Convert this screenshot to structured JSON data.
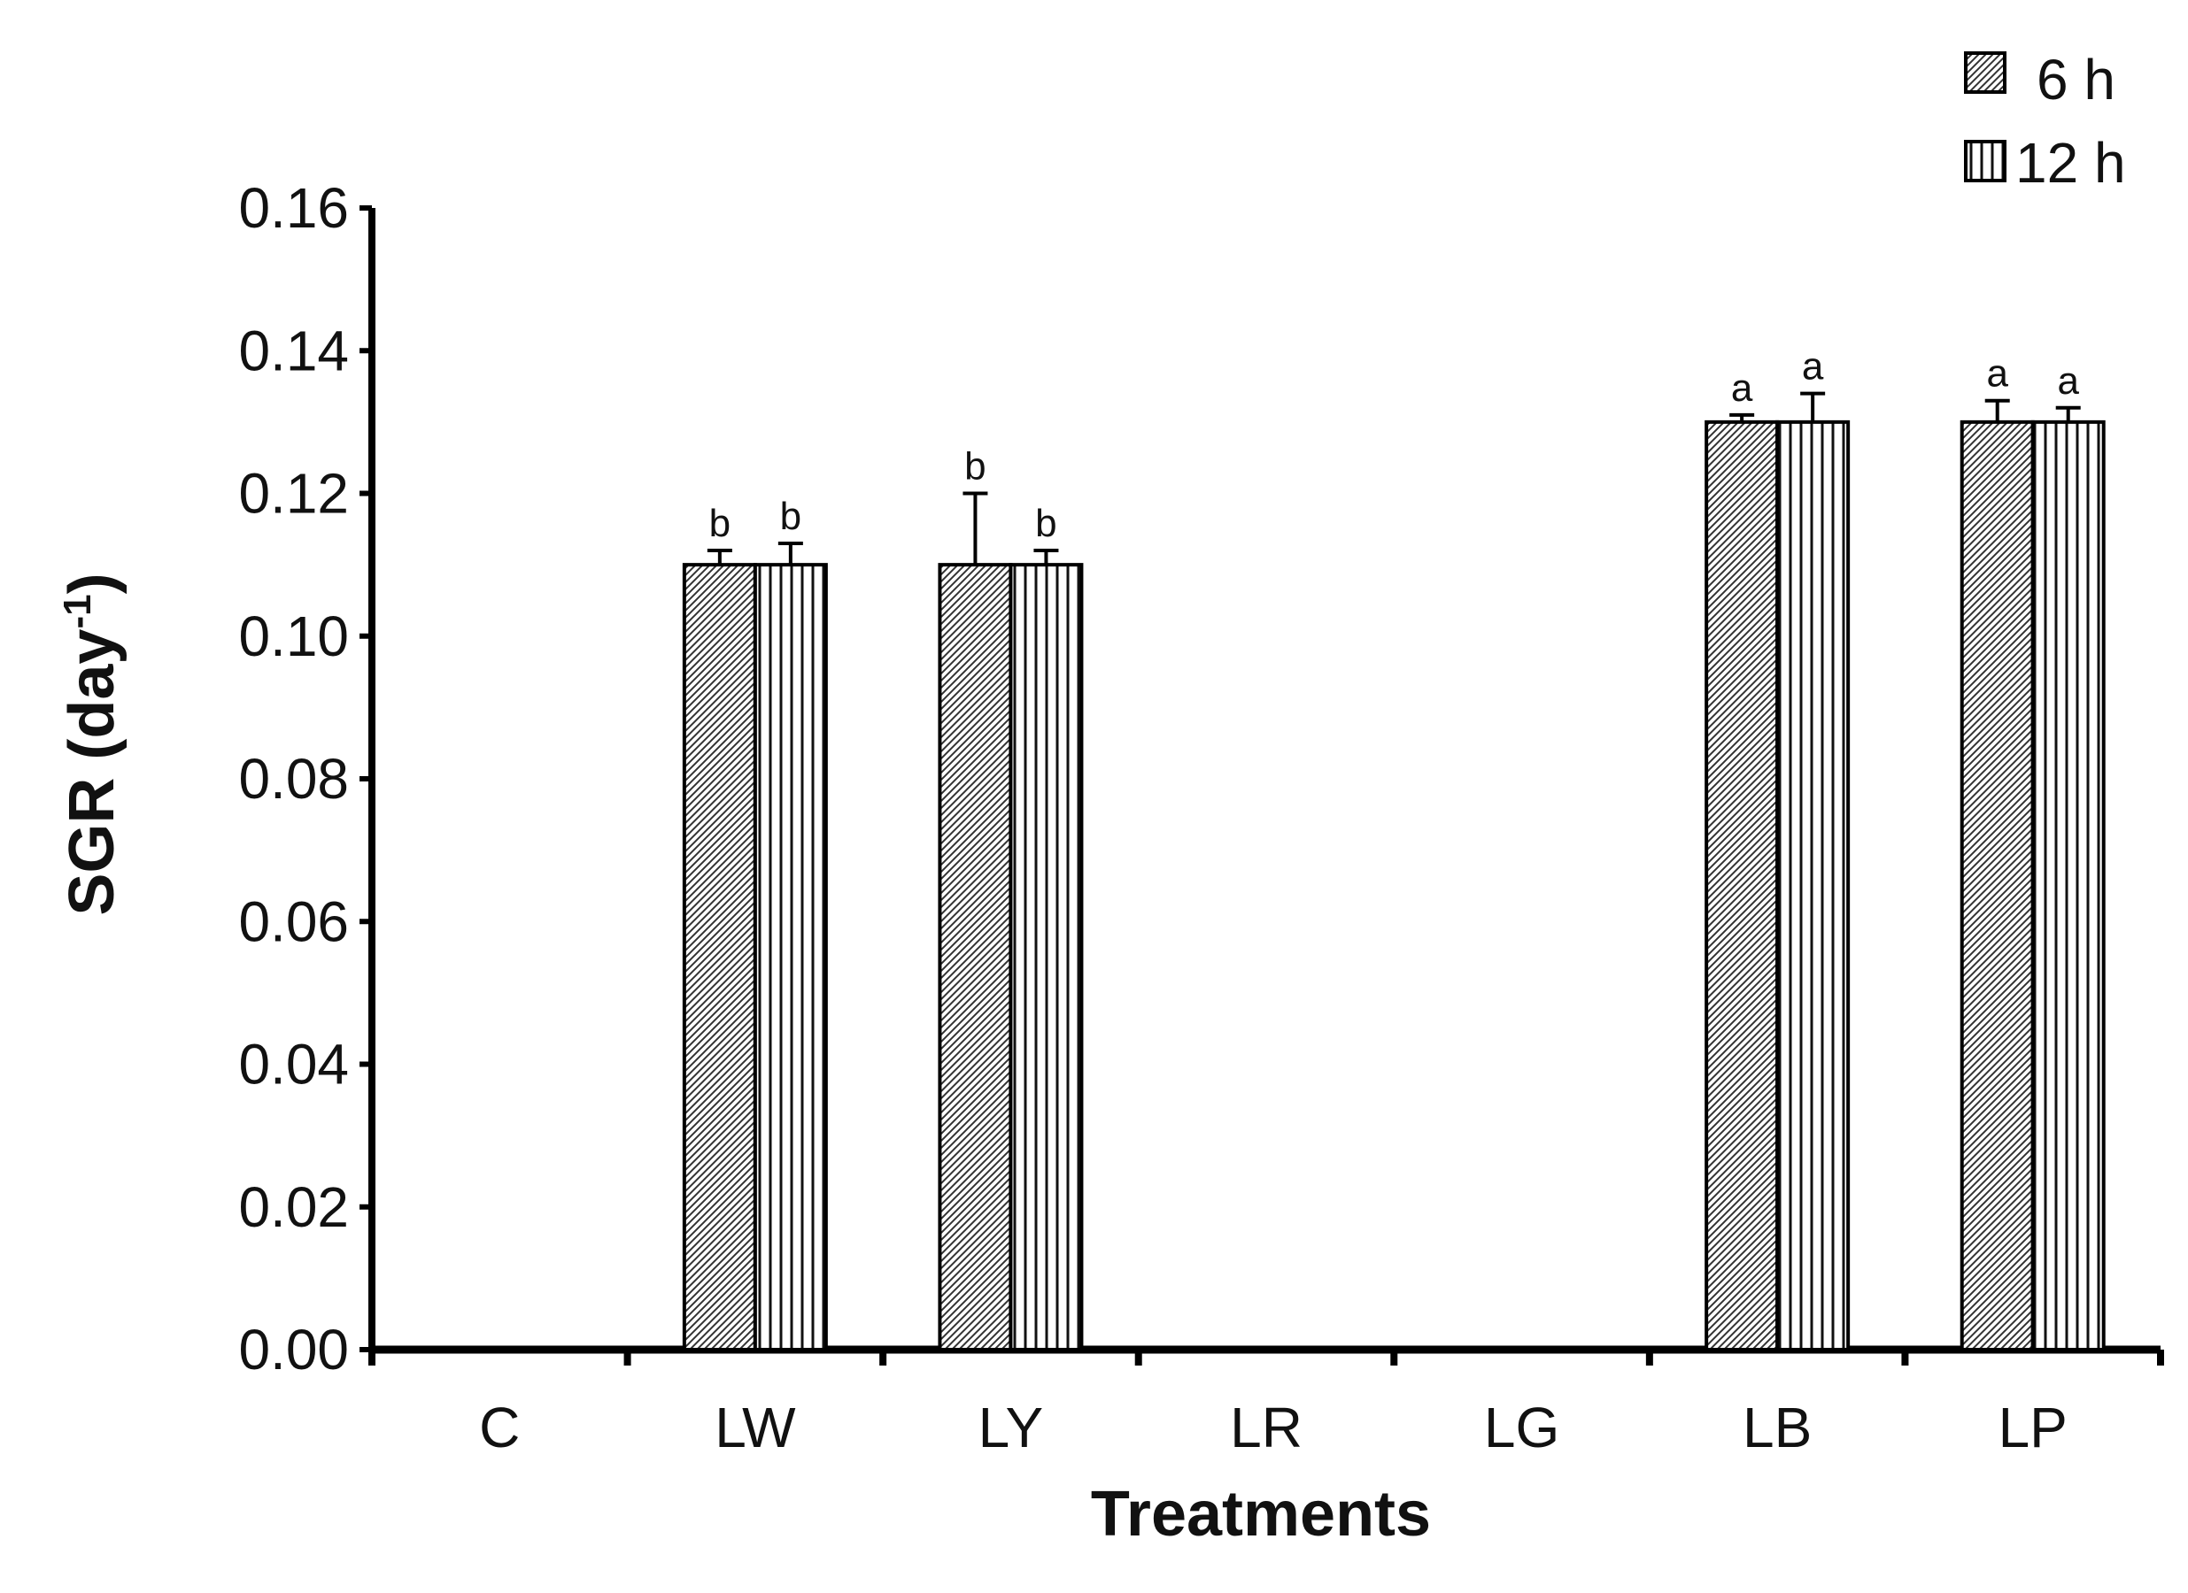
{
  "chart_data": {
    "type": "bar",
    "title": "",
    "xlabel": "Treatments",
    "ylabel": "SGR (day",
    "ylabel_superscript": "-1",
    "ylabel_close": ")",
    "ylim": [
      0,
      0.16
    ],
    "yticks": [
      "0.00",
      "0.02",
      "0.04",
      "0.06",
      "0.08",
      "0.10",
      "0.12",
      "0.14",
      "0.16"
    ],
    "categories": [
      "C",
      "LW",
      "LY",
      "LR",
      "LG",
      "LB",
      "LP"
    ],
    "legend_position": "top-right",
    "series": [
      {
        "name": "6 h",
        "pattern": "diagonal-hatch",
        "values": [
          0,
          0.11,
          0.11,
          0,
          0,
          0.13,
          0.13
        ],
        "errors": [
          0,
          0.002,
          0.01,
          0,
          0,
          0.001,
          0.003
        ],
        "labels": [
          "",
          "b",
          "b",
          "",
          "",
          "a",
          "a"
        ]
      },
      {
        "name": "12 h",
        "pattern": "vertical-lines",
        "values": [
          0,
          0.11,
          0.11,
          0,
          0,
          0.13,
          0.13
        ],
        "errors": [
          0,
          0.003,
          0.002,
          0,
          0,
          0.004,
          0.002
        ],
        "labels": [
          "",
          "b",
          "b",
          "",
          "",
          "a",
          "a"
        ]
      }
    ],
    "colors": {
      "axis": "#000000",
      "bar_fill": "#ffffff",
      "hatch": "#333333"
    }
  }
}
